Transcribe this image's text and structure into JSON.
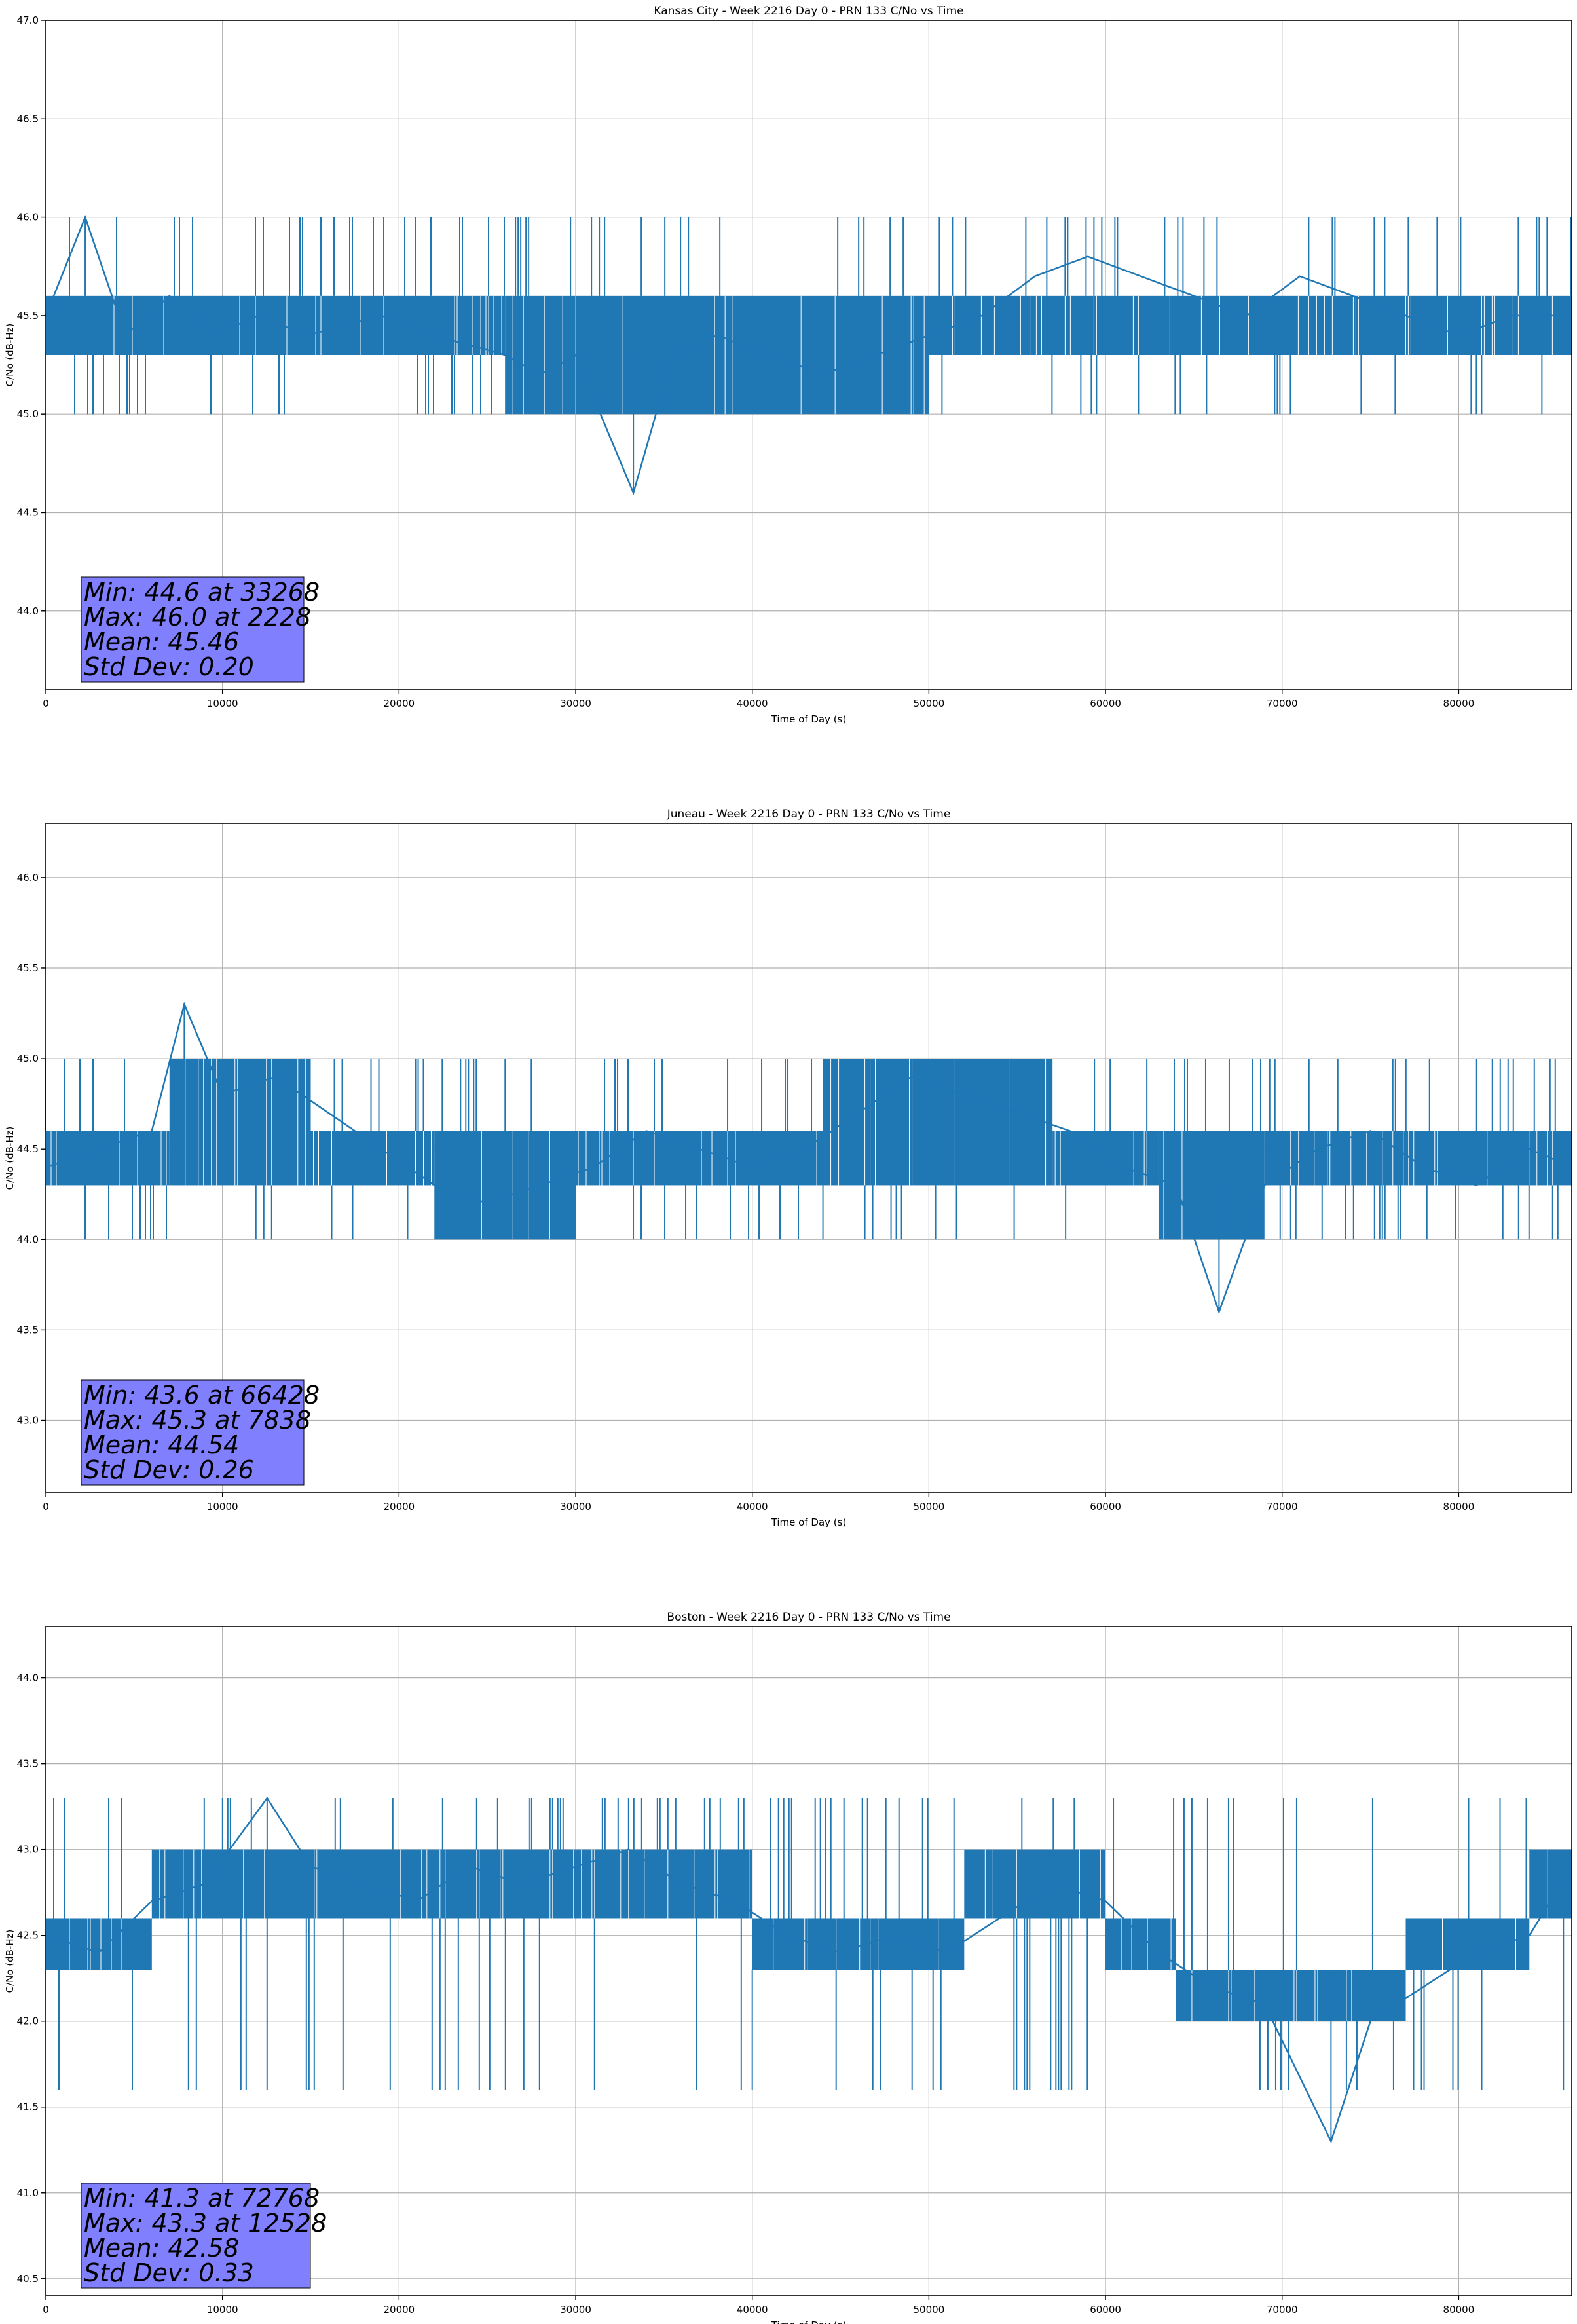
{
  "chart_data": [
    {
      "type": "line",
      "title": "Kansas City - Week 2216 Day 0 - PRN 133 C/No vs Time",
      "xlabel": "Time of Day (s)",
      "ylabel": "C/No (dB-Hz)",
      "xlim": [
        0,
        86400
      ],
      "ylim": [
        43.6,
        47.0
      ],
      "x_ticks": [
        0,
        10000,
        20000,
        30000,
        40000,
        50000,
        60000,
        70000,
        80000
      ],
      "y_ticks": [
        44.0,
        44.5,
        45.0,
        45.5,
        46.0,
        46.5,
        47.0
      ],
      "grid": true,
      "color": "#1f77b4",
      "base_band": [
        {
          "x": [
            0,
            26000
          ],
          "y": [
            45.3,
            45.6
          ]
        },
        {
          "x": [
            26000,
            50000
          ],
          "y": [
            45.0,
            45.6
          ]
        },
        {
          "x": [
            50000,
            86400
          ],
          "y": [
            45.3,
            45.6
          ]
        }
      ],
      "spike_levels": [
        45.0,
        46.0
      ],
      "series": [
        {
          "x": [
            0,
            2228,
            4500,
            7000,
            9500,
            12000,
            14800,
            19000,
            22000,
            26000,
            28000,
            30000,
            33268,
            35500,
            38000,
            41000,
            44000,
            47000,
            50000,
            53000,
            56000,
            59000,
            62000,
            65000,
            68000,
            71000,
            74000,
            77000,
            80000,
            83000,
            86400
          ],
          "y": [
            45.5,
            46.0,
            45.4,
            45.6,
            45.4,
            45.5,
            45.4,
            45.5,
            45.4,
            45.3,
            45.2,
            45.3,
            44.6,
            45.3,
            45.4,
            45.3,
            45.2,
            45.3,
            45.4,
            45.5,
            45.7,
            45.8,
            45.7,
            45.6,
            45.5,
            45.7,
            45.6,
            45.5,
            45.4,
            45.5,
            45.5
          ]
        }
      ],
      "stats_box": [
        "Min: 44.6 at 33268",
        "Max: 46.0 at 2228",
        "Mean: 45.46",
        "Std Dev: 0.20"
      ]
    },
    {
      "type": "line",
      "title": "Juneau - Week 2216 Day 0 - PRN 133 C/No vs Time",
      "xlabel": "Time of Day (s)",
      "ylabel": "C/No (dB-Hz)",
      "xlim": [
        0,
        86400
      ],
      "ylim": [
        42.6,
        46.3
      ],
      "x_ticks": [
        0,
        10000,
        20000,
        30000,
        40000,
        50000,
        60000,
        70000,
        80000
      ],
      "y_ticks": [
        43.0,
        43.5,
        44.0,
        44.5,
        45.0,
        45.5,
        46.0
      ],
      "grid": true,
      "color": "#1f77b4",
      "base_band": [
        {
          "x": [
            0,
            7000
          ],
          "y": [
            44.3,
            44.6
          ]
        },
        {
          "x": [
            7000,
            15000
          ],
          "y": [
            44.3,
            45.0
          ]
        },
        {
          "x": [
            15000,
            22000
          ],
          "y": [
            44.3,
            44.6
          ]
        },
        {
          "x": [
            22000,
            30000
          ],
          "y": [
            44.0,
            44.6
          ]
        },
        {
          "x": [
            30000,
            44000
          ],
          "y": [
            44.3,
            44.6
          ]
        },
        {
          "x": [
            44000,
            57000
          ],
          "y": [
            44.3,
            45.0
          ]
        },
        {
          "x": [
            57000,
            63000
          ],
          "y": [
            44.3,
            44.6
          ]
        },
        {
          "x": [
            63000,
            69000
          ],
          "y": [
            44.0,
            44.6
          ]
        },
        {
          "x": [
            69000,
            86400
          ],
          "y": [
            44.3,
            44.6
          ]
        }
      ],
      "spike_levels": [
        44.0,
        45.0
      ],
      "series": [
        {
          "x": [
            0,
            3000,
            6000,
            7838,
            10000,
            13000,
            16000,
            19000,
            22000,
            25000,
            28000,
            31000,
            34000,
            37000,
            40000,
            43000,
            46000,
            49000,
            52000,
            55000,
            58000,
            61000,
            64000,
            66428,
            69000,
            72000,
            75000,
            78000,
            81000,
            84000,
            86400
          ],
          "y": [
            44.4,
            44.5,
            44.6,
            45.3,
            44.8,
            44.9,
            44.7,
            44.5,
            44.3,
            44.2,
            44.3,
            44.4,
            44.6,
            44.5,
            44.4,
            44.5,
            44.7,
            44.9,
            44.8,
            44.7,
            44.6,
            44.4,
            44.3,
            43.6,
            44.3,
            44.5,
            44.6,
            44.4,
            44.3,
            44.5,
            44.4
          ]
        }
      ],
      "stats_box": [
        "Min: 43.6 at 66428",
        "Max: 45.3 at 7838",
        "Mean: 44.54",
        "Std Dev: 0.26"
      ]
    },
    {
      "type": "line",
      "title": "Boston - Week 2216 Day 0 - PRN 133 C/No vs Time",
      "xlabel": "Time of Day (s)",
      "ylabel": "C/No (dB-Hz)",
      "xlim": [
        0,
        86400
      ],
      "ylim": [
        40.4,
        44.3
      ],
      "x_ticks": [
        0,
        10000,
        20000,
        30000,
        40000,
        50000,
        60000,
        70000,
        80000
      ],
      "y_ticks": [
        40.5,
        41.0,
        41.5,
        42.0,
        42.5,
        43.0,
        43.5,
        44.0
      ],
      "grid": true,
      "color": "#1f77b4",
      "base_band": [
        {
          "x": [
            0,
            6000
          ],
          "y": [
            42.3,
            42.6
          ]
        },
        {
          "x": [
            6000,
            40000
          ],
          "y": [
            42.6,
            43.0
          ]
        },
        {
          "x": [
            40000,
            52000
          ],
          "y": [
            42.3,
            42.6
          ]
        },
        {
          "x": [
            52000,
            60000
          ],
          "y": [
            42.6,
            43.0
          ]
        },
        {
          "x": [
            60000,
            64000
          ],
          "y": [
            42.3,
            42.6
          ]
        },
        {
          "x": [
            64000,
            77000
          ],
          "y": [
            42.0,
            42.3
          ]
        },
        {
          "x": [
            77000,
            84000
          ],
          "y": [
            42.3,
            42.6
          ]
        },
        {
          "x": [
            84000,
            86400
          ],
          "y": [
            42.6,
            43.0
          ]
        }
      ],
      "spike_levels": [
        41.6,
        43.3
      ],
      "series": [
        {
          "x": [
            0,
            3000,
            6000,
            9000,
            12528,
            15000,
            18000,
            21000,
            24000,
            27000,
            30000,
            33000,
            36000,
            39000,
            42000,
            45000,
            48000,
            51000,
            54000,
            57000,
            60000,
            63000,
            66000,
            69000,
            72768,
            75000,
            78000,
            81000,
            84000,
            86400
          ],
          "y": [
            42.5,
            42.4,
            42.7,
            42.8,
            43.3,
            42.9,
            42.8,
            42.7,
            42.9,
            42.8,
            42.9,
            43.0,
            42.8,
            42.7,
            42.5,
            42.4,
            42.5,
            42.4,
            42.6,
            42.8,
            42.7,
            42.4,
            42.2,
            42.1,
            41.3,
            42.0,
            42.2,
            42.4,
            42.5,
            42.9
          ]
        }
      ],
      "stats_box": [
        "Min: 41.3 at 72768",
        "Max: 43.3 at 12528",
        "Mean: 42.58",
        "Std Dev: 0.33"
      ]
    }
  ]
}
